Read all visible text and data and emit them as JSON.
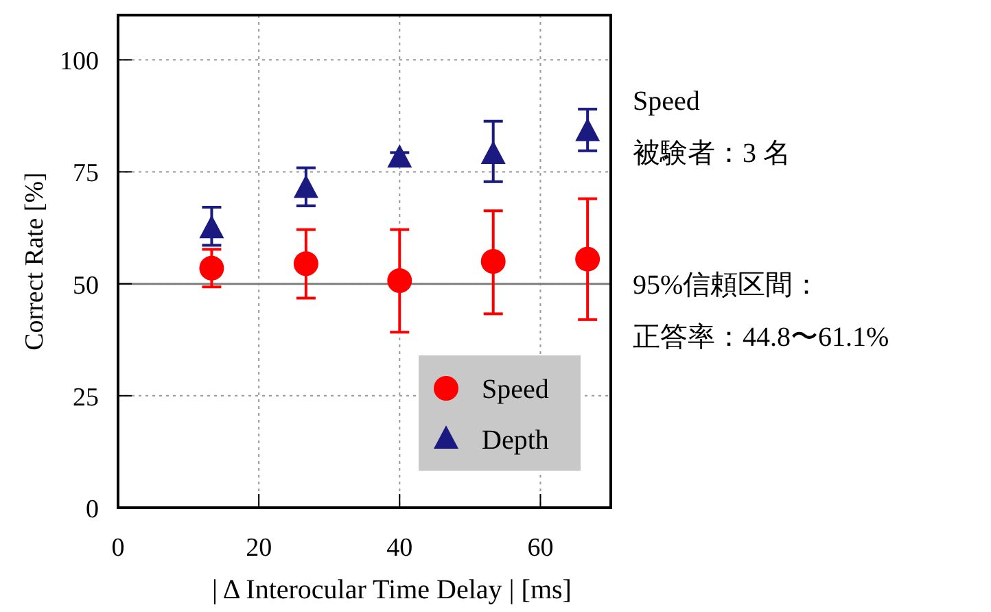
{
  "chart_data": {
    "type": "scatter",
    "xlabel": "| Δ Interocular Time Delay | [ms]",
    "ylabel": "Correct Rate [%]",
    "x": [
      13.3,
      26.7,
      40,
      53.3,
      66.7
    ],
    "series": [
      {
        "name": "Speed",
        "color": "#ff0000",
        "marker": "circle",
        "values": [
          53.5,
          54.5,
          50.7,
          55.0,
          55.5
        ],
        "errors": [
          [
            49.3,
            57.7
          ],
          [
            46.8,
            62.1
          ],
          [
            39.2,
            62.1
          ],
          [
            43.3,
            66.3
          ],
          [
            42.0,
            69.0
          ]
        ]
      },
      {
        "name": "Depth",
        "color": "#1a1a80",
        "marker": "triangle",
        "values": [
          62.3,
          71.3,
          78.1,
          78.9,
          84.0
        ],
        "errors": [
          [
            58.6,
            67.1
          ],
          [
            67.4,
            75.9
          ],
          [
            76.4,
            79.3
          ],
          [
            72.8,
            86.3
          ],
          [
            79.7,
            89.0
          ]
        ]
      }
    ],
    "xlim": [
      0,
      70
    ],
    "xticks": [
      0,
      20,
      40,
      60
    ],
    "ylim": [
      0,
      110
    ],
    "yticks": [
      0,
      25,
      50,
      75,
      100
    ],
    "grid": true,
    "legend": "bottom right",
    "ref_lines": [
      {
        "axis": "y",
        "value": 50,
        "color": "#808080",
        "line_style": "solid"
      }
    ],
    "annotations": [
      "Speed",
      "被験者：3 名",
      "95%信頼区間：",
      "正答率：44.8〜61.1%"
    ]
  }
}
